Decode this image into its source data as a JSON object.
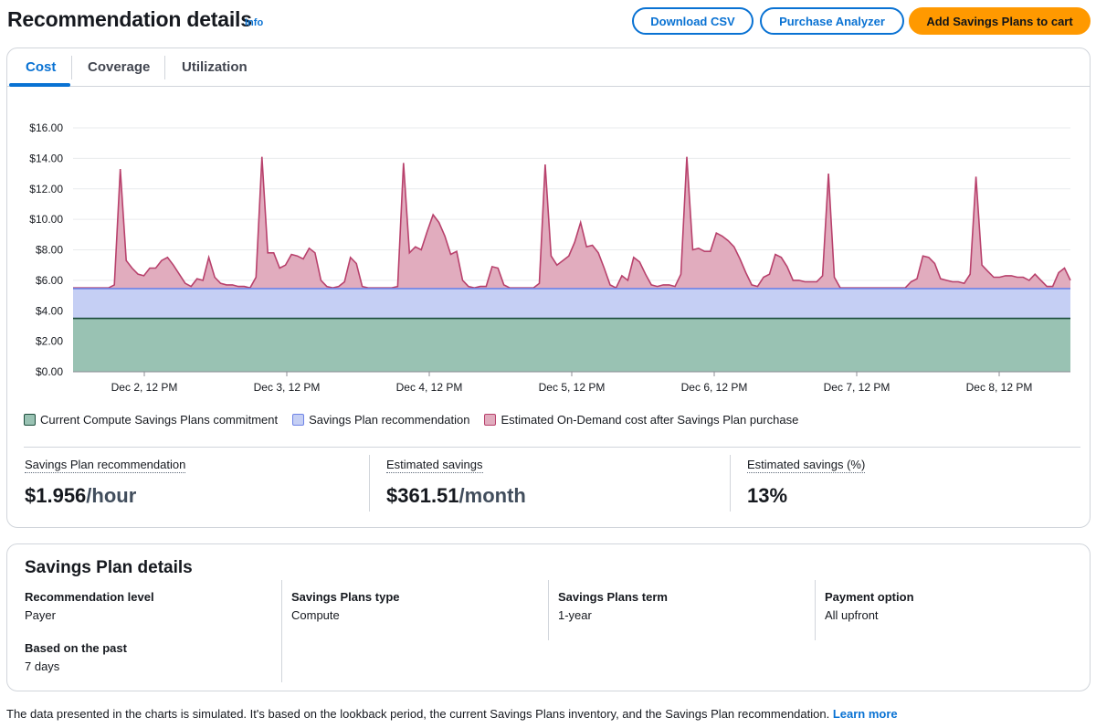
{
  "header": {
    "title": "Recommendation details",
    "info": "Info",
    "buttons": {
      "download": "Download CSV",
      "analyzer": "Purchase Analyzer",
      "cart": "Add Savings Plans to cart"
    }
  },
  "tabs": [
    "Cost",
    "Coverage",
    "Utilization"
  ],
  "colors": {
    "commitment": "#99c2b3",
    "commitment_line": "#1d4d3c",
    "recommendation": "#c5cff4",
    "recommendation_line": "#6e83e6",
    "ondemand": "#e1acbe",
    "ondemand_line": "#b8416c",
    "accent": "#0972d3",
    "primary": "#ff9900"
  },
  "chart_data": {
    "type": "area",
    "x_ticks": [
      "Dec 2, 12 PM",
      "Dec 3, 12 PM",
      "Dec 4, 12 PM",
      "Dec 5, 12 PM",
      "Dec 6, 12 PM",
      "Dec 7, 12 PM",
      "Dec 8, 12 PM"
    ],
    "y_ticks": [
      "$0.00",
      "$2.00",
      "$4.00",
      "$6.00",
      "$8.00",
      "$10.00",
      "$12.00",
      "$14.00",
      "$16.00"
    ],
    "ylim": [
      0,
      16
    ],
    "hours": 168,
    "series": [
      {
        "name": "Current Compute Savings Plans commitment",
        "constant": 3.5
      },
      {
        "name": "Savings Plan recommendation",
        "constant": 5.456
      },
      {
        "name": "Estimated On-Demand cost after Savings Plan purchase",
        "values": [
          5.5,
          5.5,
          5.5,
          5.5,
          5.5,
          5.5,
          5.5,
          5.7,
          13.3,
          7.3,
          6.8,
          6.4,
          6.3,
          6.8,
          6.8,
          7.3,
          7.5,
          7.0,
          6.4,
          5.8,
          5.6,
          6.1,
          6.0,
          7.5,
          6.2,
          5.8,
          5.7,
          5.7,
          5.6,
          5.6,
          5.5,
          6.2,
          14.1,
          7.8,
          7.8,
          6.8,
          7.0,
          7.7,
          7.6,
          7.4,
          8.1,
          7.8,
          6.0,
          5.6,
          5.5,
          5.6,
          5.9,
          7.5,
          7.1,
          5.6,
          5.5,
          5.5,
          5.5,
          5.5,
          5.5,
          5.6,
          13.7,
          7.8,
          8.2,
          8.0,
          9.2,
          10.3,
          9.8,
          8.9,
          7.7,
          7.9,
          6.0,
          5.6,
          5.5,
          5.6,
          5.6,
          6.9,
          6.8,
          5.7,
          5.5,
          5.5,
          5.5,
          5.5,
          5.5,
          5.8,
          13.6,
          7.6,
          7.0,
          7.3,
          7.6,
          8.5,
          9.8,
          8.2,
          8.3,
          7.8,
          6.8,
          5.7,
          5.5,
          6.3,
          6.0,
          7.5,
          7.2,
          6.4,
          5.7,
          5.6,
          5.7,
          5.7,
          5.6,
          6.4,
          14.1,
          8.0,
          8.1,
          7.9,
          7.9,
          9.1,
          8.9,
          8.6,
          8.2,
          7.4,
          6.5,
          5.7,
          5.6,
          6.2,
          6.4,
          7.7,
          7.5,
          6.9,
          6.0,
          6.0,
          5.9,
          5.9,
          5.9,
          6.3,
          13.0,
          6.2,
          5.5,
          5.5,
          5.5,
          5.5,
          5.5,
          5.5,
          5.5,
          5.5,
          5.5,
          5.5,
          5.5,
          5.5,
          5.9,
          6.1,
          7.6,
          7.5,
          7.1,
          6.1,
          6.0,
          5.9,
          5.9,
          5.8,
          6.4,
          12.8,
          7.0,
          6.6,
          6.2,
          6.2,
          6.3,
          6.3,
          6.2,
          6.2,
          6.0,
          6.4,
          6.0,
          5.6,
          5.6,
          6.5,
          6.8,
          6.0
        ]
      }
    ],
    "legend_position": "bottom-left",
    "grid": true
  },
  "metrics": [
    {
      "label": "Savings Plan recommendation",
      "value": "$1.956",
      "unit": "/hour"
    },
    {
      "label": "Estimated savings",
      "value": "$361.51",
      "unit": "/month"
    },
    {
      "label": "Estimated savings (%)",
      "value": "13%",
      "unit": ""
    }
  ],
  "details": {
    "title": "Savings Plan details",
    "fields": [
      {
        "key": "Recommendation level",
        "value": "Payer"
      },
      {
        "key": "Savings Plans type",
        "value": "Compute"
      },
      {
        "key": "Savings Plans term",
        "value": "1-year"
      },
      {
        "key": "Payment option",
        "value": "All upfront"
      },
      {
        "key": "Based on the past",
        "value": "7 days"
      }
    ]
  },
  "footer": {
    "text": "The data presented in the charts is simulated. It's based on the lookback period, the current Savings Plans inventory, and the Savings Plan recommendation.",
    "link": "Learn more"
  }
}
